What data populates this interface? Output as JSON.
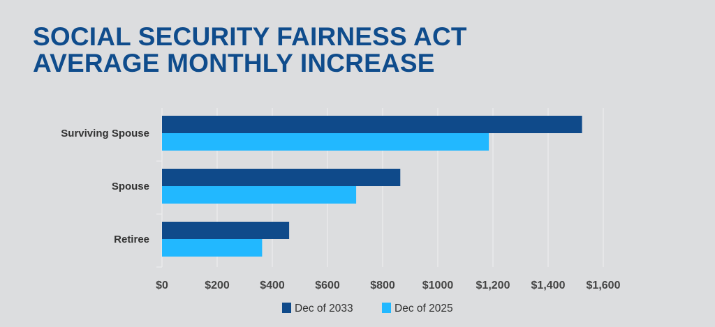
{
  "chart_data": {
    "type": "bar",
    "orientation": "horizontal",
    "title": "SOCIAL SECURITY FAIRNESS ACT AVERAGE MONTHLY INCREASE",
    "title_lines": [
      "SOCIAL SECURITY FAIRNESS ACT",
      "AVERAGE MONTHLY INCREASE"
    ],
    "categories": [
      "Surviving Spouse",
      "Spouse",
      "Retiree"
    ],
    "series": [
      {
        "name": "Dec of 2033",
        "color": "#0f4a8a",
        "values": [
          1523,
          864,
          461
        ]
      },
      {
        "name": "Dec of 2025",
        "color": "#22b8ff",
        "values": [
          1185,
          704,
          363
        ]
      }
    ],
    "xlim": [
      0,
      1600
    ],
    "xticks": [
      0,
      200,
      400,
      600,
      800,
      1000,
      1200,
      1400,
      1600
    ],
    "xtick_labels": [
      "$0",
      "$200",
      "$400",
      "$600",
      "$800",
      "$1000",
      "$1,200",
      "$1,400",
      "$1,600"
    ],
    "grid": true,
    "legend_position": "bottom-center"
  }
}
